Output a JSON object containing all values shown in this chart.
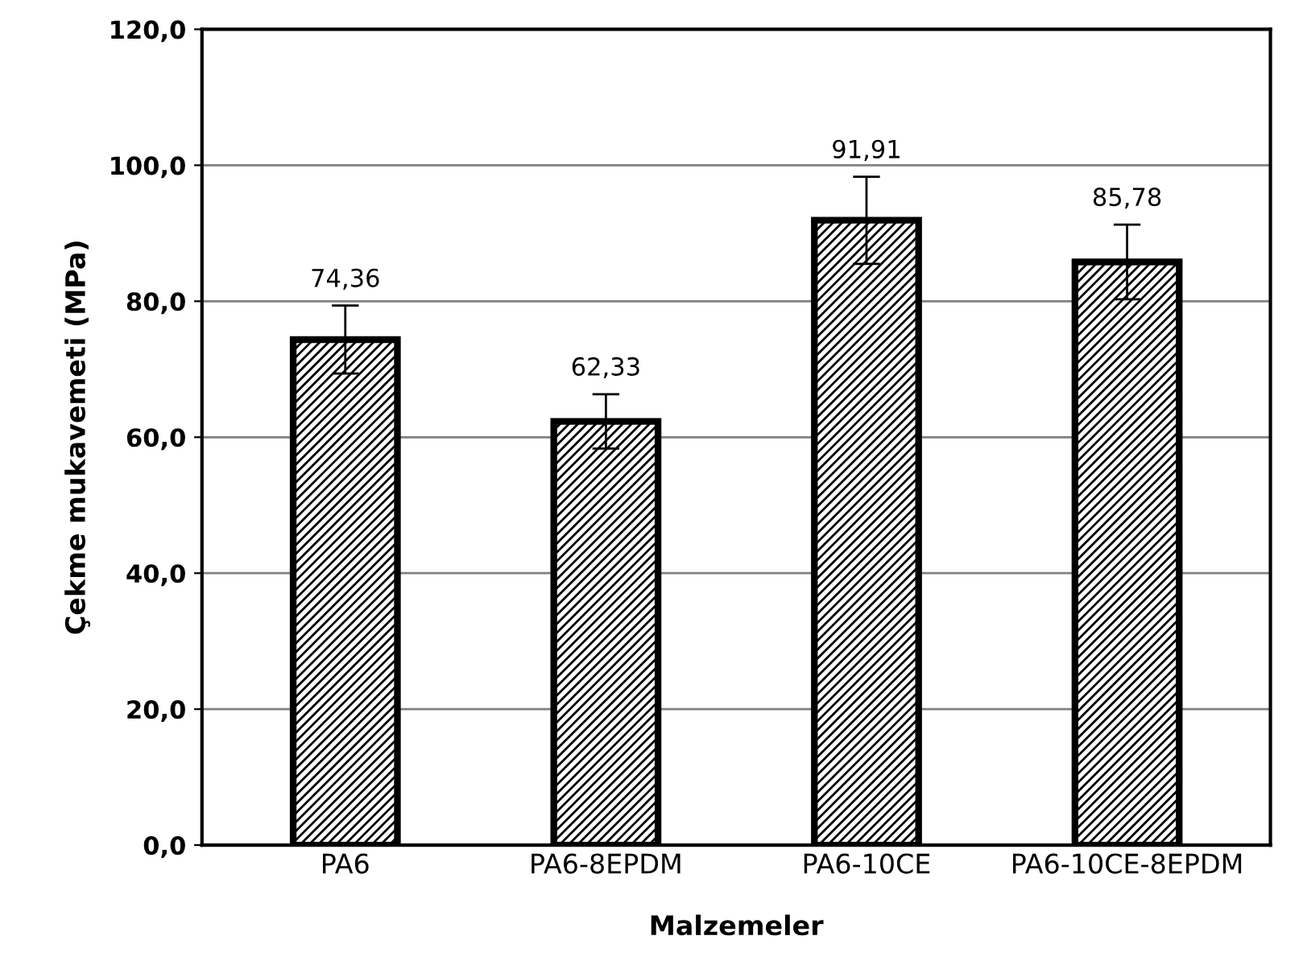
{
  "chart_data": {
    "type": "bar",
    "xlabel": "Malzemeler",
    "ylabel": "Çekme mukavemeti (MPa)",
    "categories": [
      "PA6",
      "PA6-8EPDM",
      "PA6-10CE",
      "PA6-10CE-8EPDM"
    ],
    "values": [
      74.36,
      62.33,
      91.91,
      85.78
    ],
    "value_labels": [
      "74,36",
      "62,33",
      "91,91",
      "85,78"
    ],
    "errors": [
      5,
      4,
      6.4,
      5.5
    ],
    "color": "#000000",
    "ylim": [
      0,
      120
    ],
    "yticks": [
      {
        "value": 0,
        "label": "0,0"
      },
      {
        "value": 20,
        "label": "20,0"
      },
      {
        "value": 40,
        "label": "40,0"
      },
      {
        "value": 60,
        "label": "60,0"
      },
      {
        "value": 80,
        "label": "80,0"
      },
      {
        "value": 100,
        "label": "100,0"
      },
      {
        "value": 120,
        "label": "120,0"
      }
    ],
    "grid": "y"
  }
}
